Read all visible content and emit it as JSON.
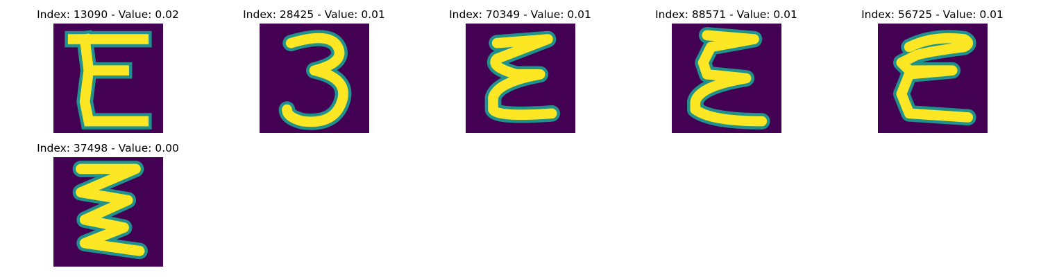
{
  "colors": {
    "background": "#440154",
    "edge": "#21918c",
    "stroke": "#fde725"
  },
  "panels": [
    {
      "title": "Index: 13090 - Value: 0.02",
      "glyph": "E"
    },
    {
      "title": "Index: 28425 - Value: 0.01",
      "glyph": "3"
    },
    {
      "title": "Index: 70349 - Value: 0.01",
      "glyph": "epsilon"
    },
    {
      "title": "Index: 88571 - Value: 0.01",
      "glyph": "epsilon"
    },
    {
      "title": "Index: 56725 - Value: 0.01",
      "glyph": "E"
    },
    {
      "title": "Index: 37498 - Value: 0.00",
      "glyph": "zigzag"
    }
  ]
}
